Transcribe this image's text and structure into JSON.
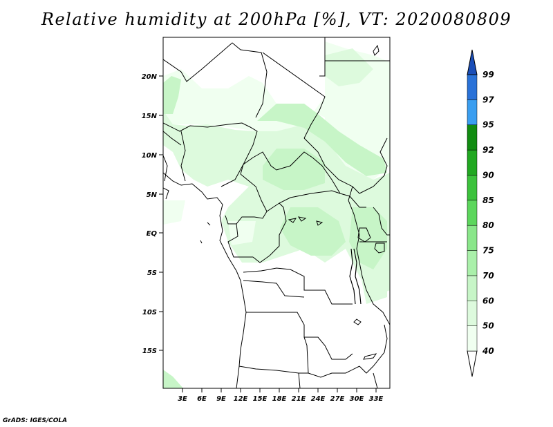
{
  "title": "Relative humidity at 200hPa [%], VT: 2020080809",
  "credit": "GrADS: IGES/COLA",
  "lat_labels": [
    "20N",
    "15N",
    "10N",
    "5N",
    "EQ",
    "5S",
    "10S",
    "15S"
  ],
  "lon_labels": [
    "3E",
    "6E",
    "9E",
    "12E",
    "15E",
    "18E",
    "21E",
    "24E",
    "27E",
    "30E",
    "33E"
  ],
  "colorbar": {
    "levels": [
      "40",
      "50",
      "60",
      "70",
      "75",
      "80",
      "85",
      "90",
      "92",
      "95",
      "97",
      "99"
    ],
    "colors": [
      "#f0fff0",
      "#ddfadd",
      "#c7f5c7",
      "#aaf0aa",
      "#8ae68a",
      "#5cd65c",
      "#3cc23c",
      "#21a821",
      "#118c11",
      "#3a9ef0",
      "#2a72d8",
      "#1a4eb8"
    ]
  }
}
